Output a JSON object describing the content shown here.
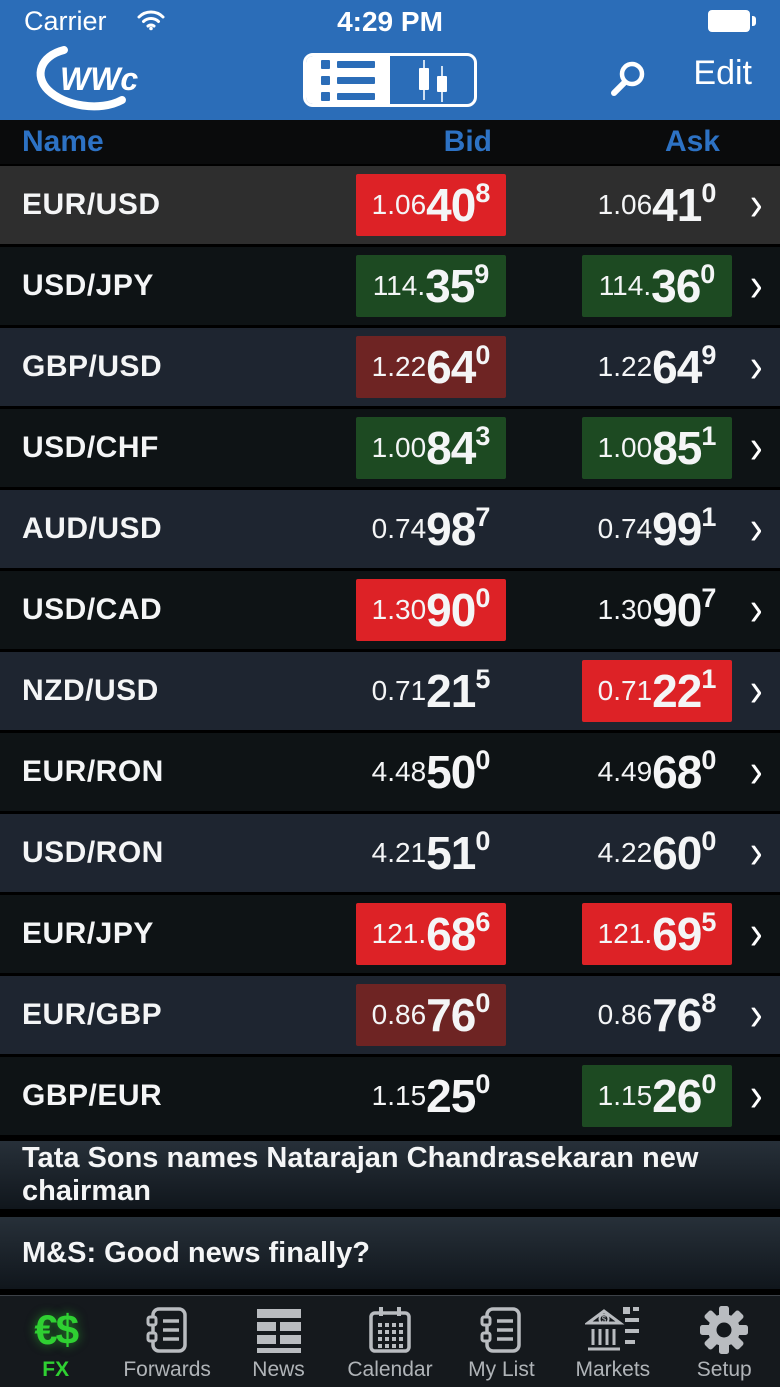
{
  "status_bar": {
    "carrier": "Carrier",
    "time": "4:29 PM",
    "battery": "full"
  },
  "nav": {
    "logo_text": "WWc",
    "edit_label": "Edit",
    "view_toggle": {
      "selected": "list",
      "options": [
        "list",
        "chart"
      ]
    }
  },
  "table": {
    "headers": {
      "name": "Name",
      "bid": "Bid",
      "ask": "Ask"
    },
    "rows": [
      {
        "name": "EUR/USD",
        "bid": {
          "prefix": "1.06",
          "main": "40",
          "sup": "8",
          "bg": "red"
        },
        "ask": {
          "prefix": "1.06",
          "main": "41",
          "sup": "0",
          "bg": "none"
        }
      },
      {
        "name": "USD/JPY",
        "bid": {
          "prefix": "114.",
          "main": "35",
          "sup": "9",
          "bg": "green"
        },
        "ask": {
          "prefix": "114.",
          "main": "36",
          "sup": "0",
          "bg": "green"
        }
      },
      {
        "name": "GBP/USD",
        "bid": {
          "prefix": "1.22",
          "main": "64",
          "sup": "0",
          "bg": "darkred"
        },
        "ask": {
          "prefix": "1.22",
          "main": "64",
          "sup": "9",
          "bg": "none"
        }
      },
      {
        "name": "USD/CHF",
        "bid": {
          "prefix": "1.00",
          "main": "84",
          "sup": "3",
          "bg": "green"
        },
        "ask": {
          "prefix": "1.00",
          "main": "85",
          "sup": "1",
          "bg": "green"
        }
      },
      {
        "name": "AUD/USD",
        "bid": {
          "prefix": "0.74",
          "main": "98",
          "sup": "7",
          "bg": "none"
        },
        "ask": {
          "prefix": "0.74",
          "main": "99",
          "sup": "1",
          "bg": "none"
        }
      },
      {
        "name": "USD/CAD",
        "bid": {
          "prefix": "1.30",
          "main": "90",
          "sup": "0",
          "bg": "red"
        },
        "ask": {
          "prefix": "1.30",
          "main": "90",
          "sup": "7",
          "bg": "none"
        }
      },
      {
        "name": "NZD/USD",
        "bid": {
          "prefix": "0.71",
          "main": "21",
          "sup": "5",
          "bg": "none"
        },
        "ask": {
          "prefix": "0.71",
          "main": "22",
          "sup": "1",
          "bg": "red"
        }
      },
      {
        "name": "EUR/RON",
        "bid": {
          "prefix": "4.48",
          "main": "50",
          "sup": "0",
          "bg": "none"
        },
        "ask": {
          "prefix": "4.49",
          "main": "68",
          "sup": "0",
          "bg": "none"
        }
      },
      {
        "name": "USD/RON",
        "bid": {
          "prefix": "4.21",
          "main": "51",
          "sup": "0",
          "bg": "none"
        },
        "ask": {
          "prefix": "4.22",
          "main": "60",
          "sup": "0",
          "bg": "none"
        }
      },
      {
        "name": "EUR/JPY",
        "bid": {
          "prefix": "121.",
          "main": "68",
          "sup": "6",
          "bg": "red"
        },
        "ask": {
          "prefix": "121.",
          "main": "69",
          "sup": "5",
          "bg": "red"
        }
      },
      {
        "name": "EUR/GBP",
        "bid": {
          "prefix": "0.86",
          "main": "76",
          "sup": "0",
          "bg": "darkred"
        },
        "ask": {
          "prefix": "0.86",
          "main": "76",
          "sup": "8",
          "bg": "none"
        }
      },
      {
        "name": "GBP/EUR",
        "bid": {
          "prefix": "1.15",
          "main": "25",
          "sup": "0",
          "bg": "none"
        },
        "ask": {
          "prefix": "1.15",
          "main": "26",
          "sup": "0",
          "bg": "green"
        }
      }
    ]
  },
  "news": [
    {
      "headline": "Tata Sons names Natarajan Chandrasekaran new chairman"
    },
    {
      "headline": "M&S: Good news finally?"
    }
  ],
  "tab_bar": {
    "items": [
      {
        "id": "fx",
        "label": "FX",
        "icon": "euro-dollar-icon",
        "active": true
      },
      {
        "id": "forwards",
        "label": "Forwards",
        "icon": "notebook-icon",
        "active": false
      },
      {
        "id": "news",
        "label": "News",
        "icon": "newspaper-icon",
        "active": false
      },
      {
        "id": "calendar",
        "label": "Calendar",
        "icon": "calendar-icon",
        "active": false
      },
      {
        "id": "mylist",
        "label": "My List",
        "icon": "notebook-icon",
        "active": false
      },
      {
        "id": "markets",
        "label": "Markets",
        "icon": "bank-icon",
        "active": false
      },
      {
        "id": "setup",
        "label": "Setup",
        "icon": "gear-icon",
        "active": false
      }
    ]
  },
  "colors": {
    "header_blue": "#2b6db8",
    "column_label_blue": "#2d72c4",
    "tick_up_green": "#1d4a22",
    "tick_down_red": "#dd2226",
    "tick_down_fading_red": "#6e2423",
    "active_tab_green": "#2fd032",
    "row_light": "#1e2530",
    "row_dark": "#0e1315",
    "row_highlight": "#2e2e2e"
  }
}
